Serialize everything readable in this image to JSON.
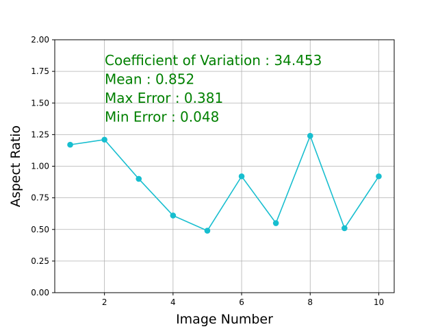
{
  "chart_data": {
    "type": "line",
    "title": "",
    "xlabel": "Image Number",
    "ylabel": "Aspect Ratio",
    "xlim": [
      0.55,
      10.45
    ],
    "ylim": [
      0,
      2.0
    ],
    "x_ticks": [
      2,
      4,
      6,
      8,
      10
    ],
    "y_ticks": [
      0.0,
      0.25,
      0.5,
      0.75,
      1.0,
      1.25,
      1.5,
      1.75,
      2.0
    ],
    "x_tick_labels": [
      "2",
      "4",
      "6",
      "8",
      "10"
    ],
    "y_tick_labels": [
      "0.00",
      "0.25",
      "0.50",
      "0.75",
      "1.00",
      "1.25",
      "1.50",
      "1.75",
      "2.00"
    ],
    "grid": true,
    "series": [
      {
        "color": "#17becf",
        "marker": "circle",
        "x": [
          1,
          2,
          3,
          4,
          5,
          6,
          7,
          8,
          9,
          10
        ],
        "y": [
          1.17,
          1.21,
          0.9,
          0.61,
          0.49,
          0.92,
          0.55,
          1.24,
          0.51,
          0.92
        ]
      }
    ],
    "annotations": [
      "Coefficient of Variation : 34.453",
      "Mean : 0.852",
      "Max Error : 0.381",
      "Min Error : 0.048"
    ],
    "annotation_color": "#008000"
  }
}
